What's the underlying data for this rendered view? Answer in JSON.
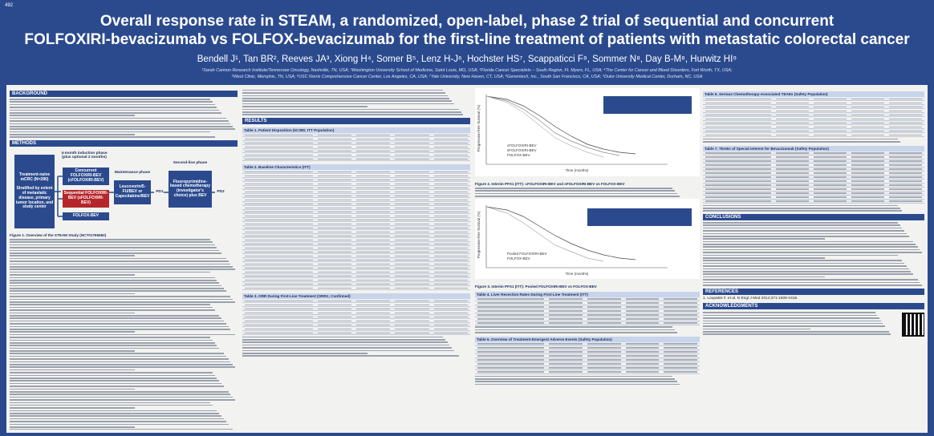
{
  "header": {
    "number": "492",
    "title": [
      "Overall response rate in STEAM, a randomized, open-label, phase 2 trial of sequential and concurrent",
      "FOLFOXIRI-bevacizumab vs FOLFOX-bevacizumab for the first-line treatment of patients with metastatic colorectal cancer"
    ],
    "authors": "Bendell J¹, Tan BR², Reeves JA³, Xiong H⁴, Somer B⁵, Lenz H-J⁶, Hochster HS⁷, Scappaticci F⁸, Sommer N⁸, Day B-M⁸, Hurwitz HI⁹",
    "affiliations": [
      "¹Sarah Cannon Research Institute/Tennessee Oncology, Nashville, TN, USA; ²Washington University School of Medicine, Saint Louis, MO, USA; ³Florida Cancer Specialists – South Region, Ft. Myers, FL, USA; ⁴The Center for Cancer and Blood Disorders, Fort Worth, TX, USA;",
      "⁵West Clinic, Memphis, TN, USA; ⁶USC Norris Comprehensive Cancer Center, Los Angeles, CA, USA; ⁷Yale University, New Haven, CT, USA; ⁸Genentech, Inc., South San Francisco, CA, USA; ⁹Duke University Medical Center, Durham, NC, USA"
    ]
  },
  "sections": {
    "background": "BACKGROUND",
    "methods": "METHODS",
    "results": "RESULTS",
    "conclusions": "CONCLUSIONS",
    "references": "REFERENCES",
    "acknowledgments": "ACKNOWLEDGMENTS"
  },
  "diagram": {
    "population": "Treatment-naive mCRC (N=280)",
    "stratified": "Stratified by extent of metastatic disease, primary tumor location, and study center",
    "induction": "4-month induction phase (plus optional 2 months)",
    "concurrent": "Concurrent FOLFOXIRI-BEV (cFOLFOXIRI-BEV)",
    "sequential": "Sequential FOLFOXIRI-BEV (sFOLFOXIRI-BEV)",
    "folfox": "FOLFOX-BEV",
    "maintenance_phase": "Maintenance phase",
    "maintenance": "Leucovorin/5-FU/BEV or Capecitabine/BEV",
    "pd1": "PD1",
    "second_line_phase": "Second-line phase",
    "second_line": "Fluoropyrimidine-based chemotherapy (investigator's choice) plus BEV",
    "pd2": "PD2"
  },
  "figures": {
    "fig1": "Figure 1. Overview of the STEAM Study (NCT01765582)",
    "fig2": "Figure 2. Interim PFS1 (ITT): cFOLFOXIRI-BEV and sFOLFOXIRI-BEV vs FOLFOX-BEV",
    "fig3": "Figure 3. Interim PFS1 (ITT): Pooled FOLFOXIRI-BEV vs FOLFOX-BEV",
    "y_label": "Progression-free Survival (%)",
    "x_label": "Time (months)",
    "legend2": [
      "cFOLFOXIRI-BEV",
      "sFOLFOXIRI-BEV",
      "FOLFOX-BEV"
    ],
    "legend3": [
      "Pooled FOLFOXIRI-BEV",
      "FOLFOX-BEV"
    ]
  },
  "tables": {
    "t1": "Table 1. Patient Disposition (N=280; ITT Population)",
    "t2": "Table 2. Baseline Characteristics (ITT)",
    "t3": "Table 3. ORR During First-Line Treatment (ORR1; Confirmed)",
    "t4": "Table 4. Liver Resection Rates During First-Line Treatment (ITT)",
    "t5": "Table 5. Overview of Treatment-Emergent Adverse Events (Safety Population)",
    "t6": "Table 6. Serious Chemotherapy-Associated TEAEs (Safety Population)",
    "t7": "Table 7. TEAEs of Special Interest for Bevacizumab (Safety Population)"
  },
  "reference": "1. Loupakis F, et al. N Engl J Med 2014;371:1609-1618."
}
